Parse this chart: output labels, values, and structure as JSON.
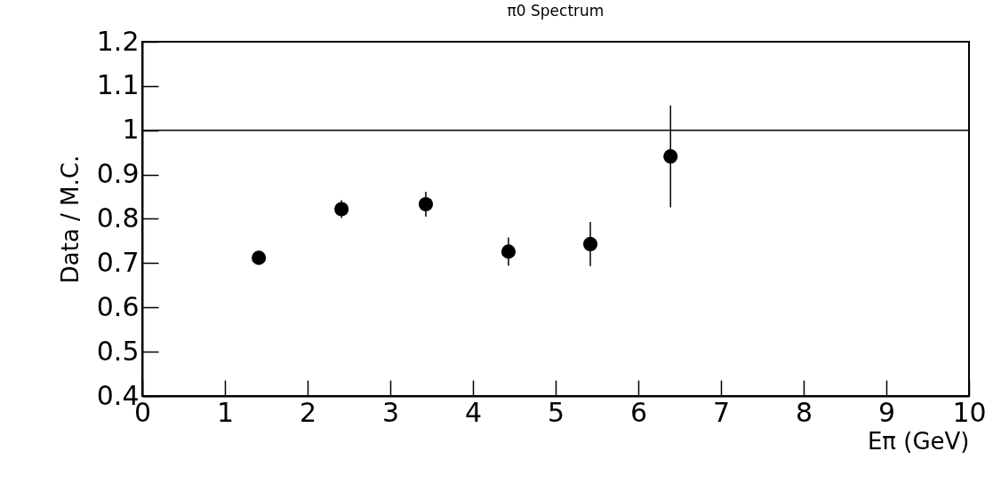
{
  "chart_data": {
    "type": "scatter",
    "title": "π0 Spectrum",
    "xlabel": "Eπ (GeV)",
    "ylabel": "Data / M.C.",
    "x": [
      1.41,
      2.41,
      3.43,
      4.43,
      5.42,
      6.39
    ],
    "values": [
      0.712,
      0.822,
      0.833,
      0.726,
      0.743,
      0.941
    ],
    "errors": [
      0.01,
      0.02,
      0.028,
      0.032,
      0.05,
      0.115
    ],
    "color": "#000000",
    "marker": "circle",
    "xlim": [
      0,
      10
    ],
    "xticks": [
      0,
      1,
      2,
      3,
      4,
      5,
      6,
      7,
      8,
      9,
      10
    ],
    "ylim": [
      0.4,
      1.2
    ],
    "yticks": [
      0.4,
      0.5,
      0.6,
      0.7,
      0.8,
      0.9,
      1,
      1.1,
      1.2
    ],
    "ref_lines": [
      {
        "axis": "y",
        "value": 1
      }
    ],
    "grid": false
  }
}
